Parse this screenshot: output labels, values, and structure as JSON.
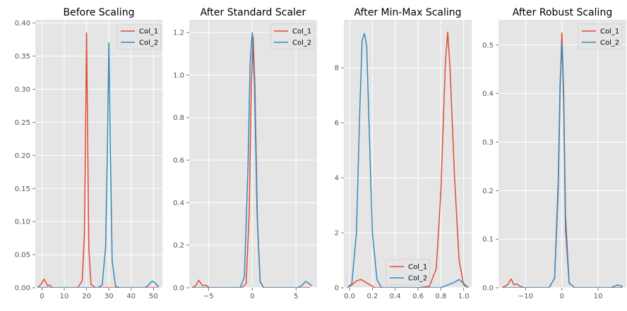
{
  "colors": {
    "col_1": "#E24A33",
    "col_2": "#348ABD",
    "panel_bg": "#E5E5E5",
    "grid": "#FFFFFF"
  },
  "chart_data": [
    {
      "type": "line",
      "title": "Before Scaling",
      "xlim": [
        -3,
        54
      ],
      "ylim": [
        0,
        0.405
      ],
      "xticks": [
        0,
        10,
        20,
        30,
        40,
        50
      ],
      "yticks": [
        0.0,
        0.05,
        0.1,
        0.15,
        0.2,
        0.25,
        0.3,
        0.35,
        0.4
      ],
      "xtick_labels": [
        "0",
        "10",
        "20",
        "30",
        "40",
        "50"
      ],
      "ytick_labels": [
        "0.00",
        "0.05",
        "0.10",
        "0.15",
        "0.20",
        "0.25",
        "0.30",
        "0.35",
        "0.40"
      ],
      "legend": "top-right",
      "grid": true,
      "series": [
        {
          "name": "Col_1",
          "color": "#E24A33",
          "x": [
            -2,
            -0.5,
            1,
            2.5,
            3.5,
            4.5,
            6,
            16,
            18,
            19,
            19.5,
            20,
            20.5,
            21,
            22,
            24,
            52
          ],
          "y": [
            0,
            0.005,
            0.013,
            0.003,
            0.004,
            0.0,
            0.0,
            0.0,
            0.01,
            0.08,
            0.22,
            0.385,
            0.22,
            0.06,
            0.005,
            0,
            0
          ]
        },
        {
          "name": "Col_2",
          "color": "#348ABD",
          "x": [
            -2,
            25,
            27,
            28.5,
            29.3,
            30,
            30.7,
            31.5,
            33,
            35,
            46,
            47.5,
            48.5,
            49.5,
            50.5,
            51.5,
            52.5
          ],
          "y": [
            0,
            0,
            0.004,
            0.06,
            0.2,
            0.37,
            0.2,
            0.04,
            0.002,
            0,
            0,
            0.003,
            0.007,
            0.01,
            0.008,
            0.004,
            0.001
          ]
        }
      ]
    },
    {
      "type": "line",
      "title": "After Standard Scaler",
      "xlim": [
        -7.2,
        7.4
      ],
      "ylim": [
        0,
        1.26
      ],
      "xticks": [
        -5,
        0,
        5
      ],
      "yticks": [
        0.0,
        0.2,
        0.4,
        0.6,
        0.8,
        1.0,
        1.2
      ],
      "xtick_labels": [
        "−5",
        "0",
        "5"
      ],
      "ytick_labels": [
        "0.0",
        "0.2",
        "0.4",
        "0.6",
        "0.8",
        "1.0",
        "1.2"
      ],
      "legend": "top-right",
      "grid": true,
      "series": [
        {
          "name": "Col_1",
          "color": "#E24A33",
          "x": [
            -6.9,
            -6.5,
            -6.1,
            -5.7,
            -5.3,
            -4.9,
            -1.2,
            -0.7,
            -0.35,
            -0.1,
            0.1,
            0.3,
            0.6,
            0.9,
            1.3,
            6.6
          ],
          "y": [
            0,
            0.008,
            0.035,
            0.01,
            0.012,
            0,
            0,
            0.02,
            0.35,
            0.95,
            1.18,
            0.95,
            0.3,
            0.03,
            0,
            0
          ]
        },
        {
          "name": "Col_2",
          "color": "#348ABD",
          "x": [
            -6.9,
            -1.4,
            -0.9,
            -0.5,
            -0.25,
            0,
            0.25,
            0.55,
            0.9,
            1.3,
            5.2,
            5.7,
            6.1,
            6.5,
            6.8
          ],
          "y": [
            0,
            0,
            0.05,
            0.55,
            1.05,
            1.2,
            0.95,
            0.35,
            0.03,
            0,
            0,
            0.012,
            0.03,
            0.02,
            0.008
          ]
        }
      ]
    },
    {
      "type": "line",
      "title": "After Min-Max Scaling",
      "xlim": [
        -0.05,
        1.07
      ],
      "ylim": [
        0,
        9.75
      ],
      "xticks": [
        0.0,
        0.2,
        0.4,
        0.6,
        0.8,
        1.0
      ],
      "yticks": [
        0,
        2,
        4,
        6,
        8
      ],
      "xtick_labels": [
        "0.0",
        "0.2",
        "0.4",
        "0.6",
        "0.8",
        "1.0"
      ],
      "ytick_labels": [
        "0",
        "2",
        "4",
        "6",
        "8"
      ],
      "legend": "bottom-center",
      "grid": true,
      "series": [
        {
          "name": "Col_1",
          "color": "#E24A33",
          "x": [
            -0.02,
            0.02,
            0.06,
            0.1,
            0.14,
            0.18,
            0.22,
            0.6,
            0.7,
            0.76,
            0.8,
            0.84,
            0.86,
            0.88,
            0.92,
            0.96,
            1.0,
            1.04
          ],
          "y": [
            0,
            0.1,
            0.25,
            0.3,
            0.2,
            0.1,
            0,
            0,
            0.05,
            0.7,
            3.5,
            8.2,
            9.3,
            8.0,
            4.0,
            1.0,
            0.1,
            0
          ]
        },
        {
          "name": "Col_2",
          "color": "#348ABD",
          "x": [
            -0.02,
            0.02,
            0.06,
            0.09,
            0.11,
            0.13,
            0.15,
            0.17,
            0.2,
            0.24,
            0.28,
            0.8,
            0.86,
            0.92,
            0.96,
            1.0,
            1.04
          ],
          "y": [
            0,
            0.15,
            2.0,
            6.5,
            9.0,
            9.25,
            8.8,
            6.0,
            2.0,
            0.3,
            0,
            0,
            0.1,
            0.2,
            0.3,
            0.15,
            0
          ]
        }
      ]
    },
    {
      "type": "line",
      "title": "After Robust Scaling",
      "xlim": [
        -17.5,
        17.8
      ],
      "ylim": [
        0,
        0.552
      ],
      "xticks": [
        -10,
        0,
        10
      ],
      "yticks": [
        0.0,
        0.1,
        0.2,
        0.3,
        0.4,
        0.5
      ],
      "xtick_labels": [
        "−10",
        "0",
        "10"
      ],
      "ytick_labels": [
        "0.0",
        "0.1",
        "0.2",
        "0.3",
        "0.4",
        "0.5"
      ],
      "legend": "top-right",
      "grid": true,
      "series": [
        {
          "name": "Col_1",
          "color": "#E24A33",
          "x": [
            -16.5,
            -15,
            -14,
            -13.2,
            -12.5,
            -11.5,
            -10.5,
            -3.5,
            -2,
            -1,
            -0.5,
            0,
            0.5,
            1,
            2,
            3.5,
            16.8
          ],
          "y": [
            0,
            0.006,
            0.018,
            0.006,
            0.008,
            0.003,
            0,
            0,
            0.02,
            0.2,
            0.4,
            0.525,
            0.4,
            0.15,
            0.01,
            0,
            0
          ]
        },
        {
          "name": "Col_2",
          "color": "#348ABD",
          "x": [
            -16.5,
            -3.5,
            -2,
            -1,
            -0.5,
            0,
            0.5,
            1,
            2,
            3.5,
            13.5,
            14.5,
            15.5,
            16.8
          ],
          "y": [
            0,
            0,
            0.02,
            0.22,
            0.42,
            0.505,
            0.38,
            0.12,
            0.01,
            0,
            0,
            0.003,
            0.006,
            0.002
          ]
        }
      ]
    }
  ]
}
